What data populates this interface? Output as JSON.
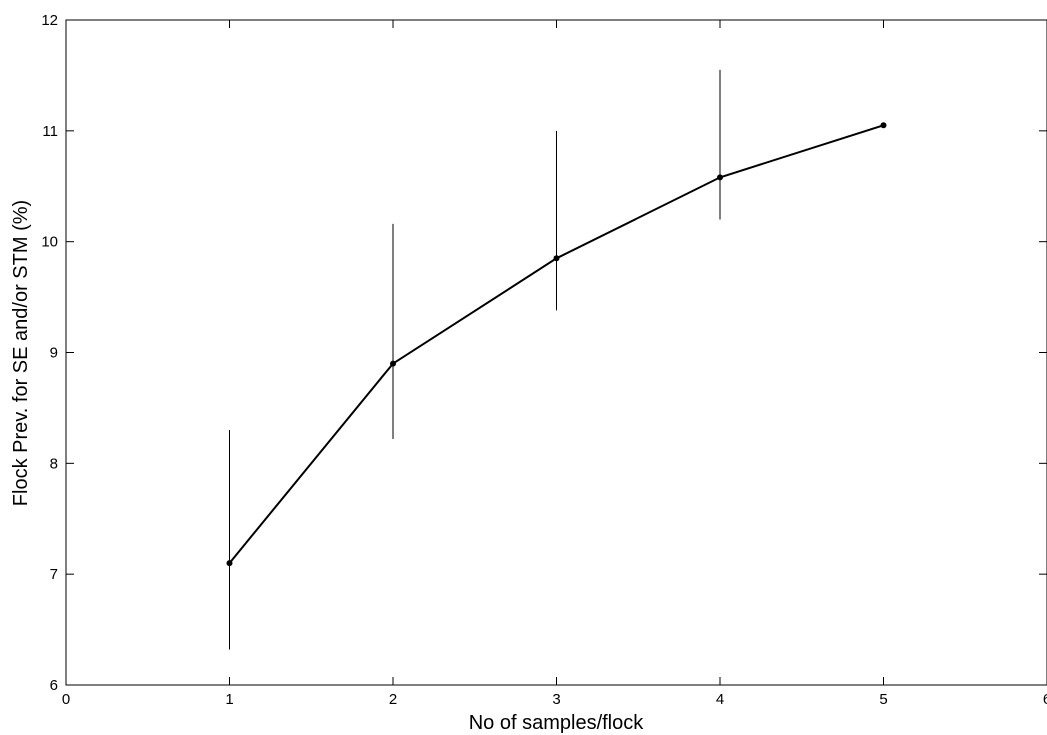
{
  "chart_data": {
    "type": "line",
    "title": "",
    "xlabel": "No of samples/flock",
    "ylabel": "Flock Prev. for SE and/or STM (%)",
    "xlim": [
      0,
      6
    ],
    "ylim": [
      6,
      12
    ],
    "xticks": [
      "0",
      "1",
      "2",
      "3",
      "4",
      "5",
      "6"
    ],
    "yticks": [
      "6",
      "7",
      "8",
      "9",
      "10",
      "11",
      "12"
    ],
    "grid": false,
    "legend": "none",
    "line_color": "#000000",
    "series": [
      {
        "x": [
          1,
          2,
          3,
          4,
          5
        ],
        "y": [
          7.1,
          8.9,
          9.85,
          10.58,
          11.05
        ],
        "error_low": [
          6.32,
          8.22,
          9.38,
          10.2,
          11.05
        ],
        "error_high": [
          8.3,
          10.16,
          11.0,
          11.55,
          11.05
        ]
      }
    ]
  }
}
